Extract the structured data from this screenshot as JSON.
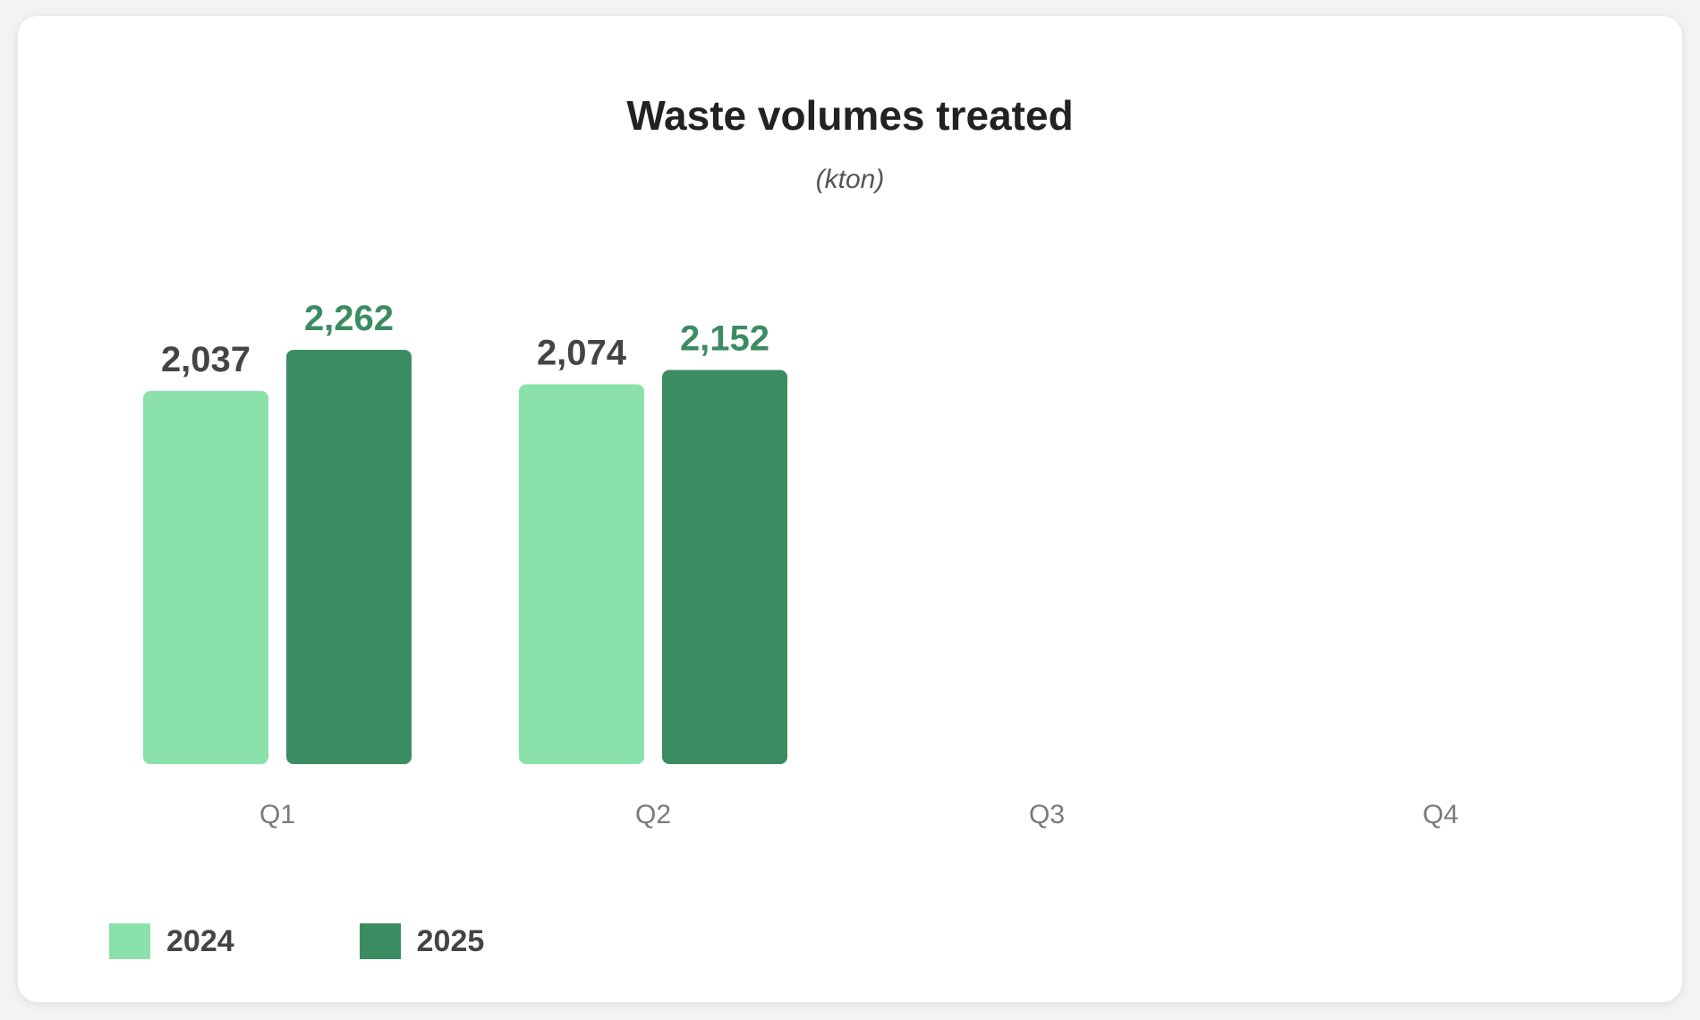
{
  "chart_data": {
    "type": "bar",
    "title": "Waste volumes treated",
    "subtitle": "(kton)",
    "categories": [
      "Q1",
      "Q2",
      "Q3",
      "Q4"
    ],
    "series": [
      {
        "name": "2024",
        "color": "#8ae2aa",
        "label_color": "#444444",
        "values": [
          2037,
          2074,
          null,
          null
        ],
        "labels": [
          "2,037",
          "2,074",
          "",
          ""
        ]
      },
      {
        "name": "2025",
        "color": "#3c8c62",
        "label_color": "#3c8c62",
        "values": [
          2262,
          2152,
          null,
          null
        ],
        "labels": [
          "2,262",
          "2,152",
          "",
          ""
        ]
      }
    ],
    "ylim": [
      0,
      2400
    ],
    "grid": false,
    "legend": "bottom-left"
  }
}
